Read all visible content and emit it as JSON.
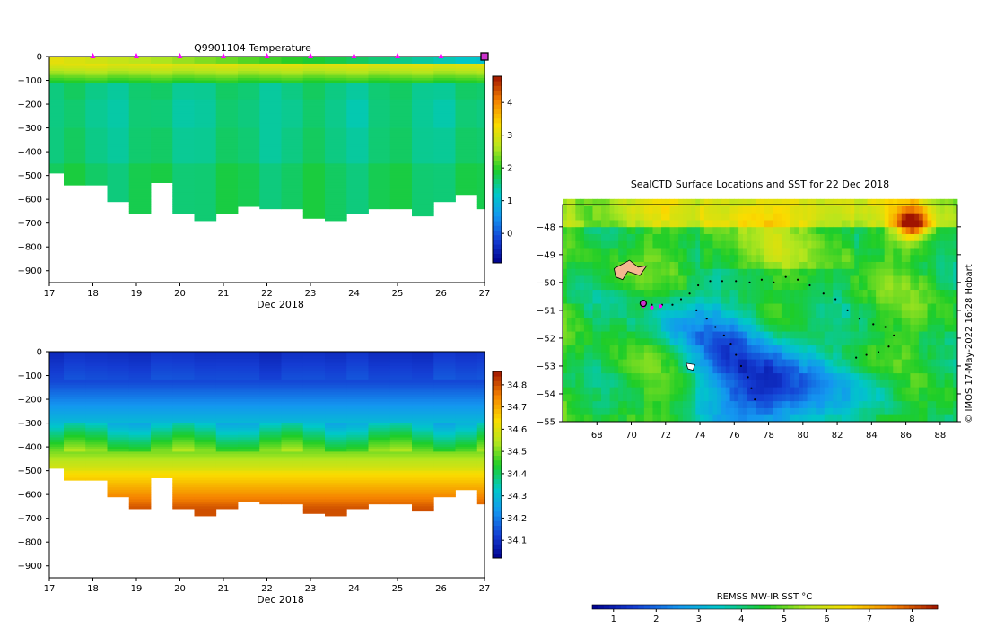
{
  "credit": "© IMOS 17-May-2022 16:28 Hobart",
  "chart_data": [
    {
      "id": "temperature",
      "type": "heatmap",
      "title": "Q9901104  Temperature",
      "xlabel": "Dec 2018",
      "x_ticks": [
        17,
        18,
        19,
        20,
        21,
        22,
        23,
        24,
        25,
        26,
        27
      ],
      "xlim": [
        17,
        27
      ],
      "y_ticks": [
        0,
        -100,
        -200,
        -300,
        -400,
        -500,
        -600,
        -700,
        -800,
        -900
      ],
      "ylim": [
        -950,
        0
      ],
      "profile_days": [
        17.0,
        17.33,
        17.83,
        18.33,
        18.83,
        19.33,
        19.83,
        20.33,
        20.83,
        21.33,
        21.83,
        22.33,
        22.83,
        23.33,
        23.83,
        24.33,
        24.83,
        25.33,
        25.83,
        26.33,
        26.83
      ],
      "profile_bottoms": [
        -490,
        -535,
        -540,
        -605,
        -655,
        -530,
        -660,
        -690,
        -660,
        -630,
        -635,
        -635,
        -675,
        -685,
        -655,
        -635,
        -640,
        -670,
        -605,
        -580,
        -640
      ],
      "markers_x": [
        18,
        19,
        20,
        21,
        22,
        23,
        24,
        25,
        26
      ],
      "current_x": 27,
      "colorbar": {
        "ticks": [
          0,
          1,
          2,
          3,
          4
        ],
        "range": [
          -0.9,
          4.8
        ]
      }
    },
    {
      "id": "salinity",
      "type": "heatmap",
      "title": "",
      "xlabel": "Dec 2018",
      "x_ticks": [
        17,
        18,
        19,
        20,
        21,
        22,
        23,
        24,
        25,
        26,
        27
      ],
      "xlim": [
        17,
        27
      ],
      "y_ticks": [
        0,
        -100,
        -200,
        -300,
        -400,
        -500,
        -600,
        -700,
        -800,
        -900
      ],
      "ylim": [
        -950,
        0
      ],
      "profile_days": [
        17.0,
        17.33,
        17.83,
        18.33,
        18.83,
        19.33,
        19.83,
        20.33,
        20.83,
        21.33,
        21.83,
        22.33,
        22.83,
        23.33,
        23.83,
        24.33,
        24.83,
        25.33,
        25.83,
        26.33,
        26.83
      ],
      "profile_bottoms": [
        -490,
        -535,
        -540,
        -605,
        -655,
        -530,
        -660,
        -690,
        -660,
        -630,
        -635,
        -635,
        -675,
        -685,
        -655,
        -635,
        -640,
        -670,
        -605,
        -580,
        -640
      ],
      "colorbar": {
        "ticks": [
          34.1,
          34.2,
          34.3,
          34.4,
          34.5,
          34.6,
          34.7,
          34.8
        ],
        "range": [
          34.02,
          34.86
        ]
      }
    },
    {
      "id": "sst-map",
      "type": "heatmap",
      "title": "SealCTD Surface Locations and SST for 22 Dec 2018",
      "x_ticks": [
        68,
        70,
        72,
        74,
        76,
        78,
        80,
        82,
        84,
        86,
        88
      ],
      "xlim": [
        66,
        89
      ],
      "y_ticks": [
        -48,
        -49,
        -50,
        -51,
        -52,
        -53,
        -54,
        -55
      ],
      "ylim": [
        -55,
        -47.2
      ],
      "track": [
        [
          70.7,
          -50.8
        ],
        [
          71.2,
          -50.8
        ],
        [
          71.8,
          -50.8
        ],
        [
          72.4,
          -50.8
        ],
        [
          72.9,
          -50.6
        ],
        [
          73.4,
          -50.4
        ],
        [
          73.9,
          -50.1
        ],
        [
          74.6,
          -49.95
        ],
        [
          75.3,
          -49.95
        ],
        [
          76.1,
          -49.95
        ],
        [
          76.9,
          -50.0
        ],
        [
          77.6,
          -49.9
        ],
        [
          78.3,
          -50.0
        ],
        [
          79.0,
          -49.8
        ],
        [
          79.7,
          -49.9
        ],
        [
          80.4,
          -50.1
        ],
        [
          81.2,
          -50.4
        ],
        [
          81.9,
          -50.6
        ],
        [
          82.6,
          -51.0
        ],
        [
          83.3,
          -51.3
        ],
        [
          84.1,
          -51.5
        ],
        [
          84.8,
          -51.6
        ],
        [
          85.3,
          -51.9
        ],
        [
          85.0,
          -52.3
        ],
        [
          84.4,
          -52.5
        ],
        [
          83.7,
          -52.6
        ],
        [
          83.1,
          -52.7
        ],
        [
          73.8,
          -51.0
        ],
        [
          74.4,
          -51.3
        ],
        [
          74.9,
          -51.6
        ],
        [
          75.4,
          -51.9
        ],
        [
          75.8,
          -52.2
        ],
        [
          76.1,
          -52.6
        ],
        [
          76.4,
          -53.0
        ],
        [
          76.8,
          -53.4
        ],
        [
          77.0,
          -53.8
        ],
        [
          77.2,
          -54.2
        ]
      ],
      "recent": [
        [
          70.7,
          -50.85
        ],
        [
          71.2,
          -50.9
        ],
        [
          71.7,
          -50.85
        ]
      ],
      "current": [
        70.7,
        -50.75
      ],
      "colorbar": {
        "label": "REMSS MW-IR SST °C",
        "ticks": [
          1,
          2,
          3,
          4,
          5,
          6,
          7,
          8
        ],
        "range": [
          0.5,
          8.6
        ]
      }
    }
  ]
}
